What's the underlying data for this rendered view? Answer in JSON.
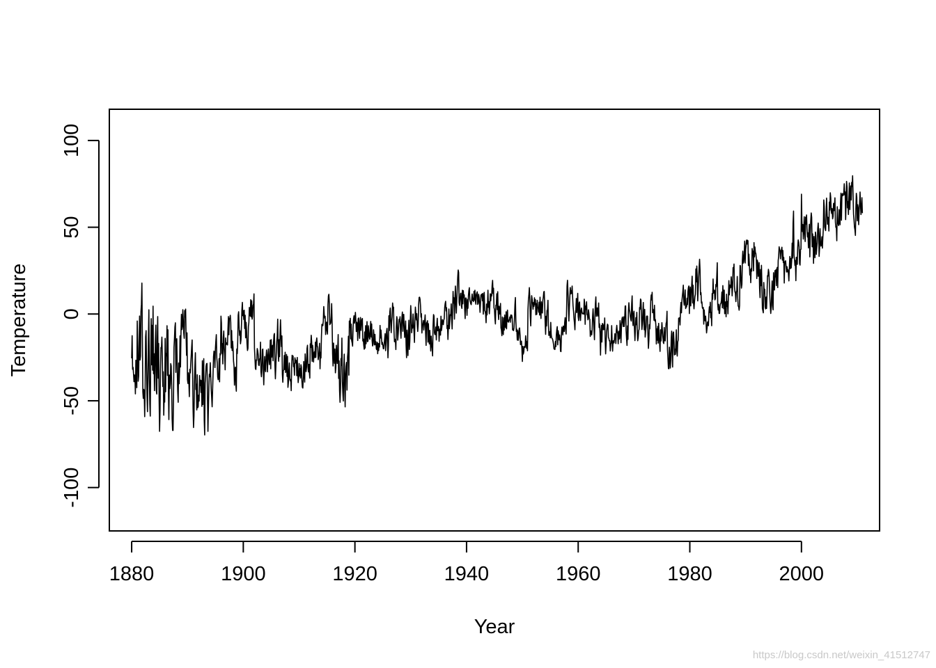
{
  "chart_data": {
    "type": "line",
    "title": "",
    "xlabel": "Year",
    "ylabel": "Temperature",
    "xlim": [
      1876,
      2014
    ],
    "ylim": [
      -125,
      118
    ],
    "x_ticks": [
      1880,
      1900,
      1920,
      1940,
      1960,
      1980,
      2000
    ],
    "x_tick_labels": [
      "1880",
      "1900",
      "1920",
      "1940",
      "1960",
      "1980",
      "2000"
    ],
    "y_ticks": [
      -100,
      -50,
      0,
      50,
      100
    ],
    "y_tick_labels": [
      "-100",
      "-50",
      "0",
      "50",
      "100"
    ],
    "grid": false,
    "legend": "none",
    "line_color": "#000000",
    "sampling": "monthly values, 1880-01 to 2010-12, anchored by yearly mean and monthly spread",
    "series": [
      {
        "start": 1880,
        "end": 2010,
        "years": [
          1880,
          1881,
          1882,
          1883,
          1884,
          1885,
          1886,
          1887,
          1888,
          1889,
          1890,
          1891,
          1892,
          1893,
          1894,
          1895,
          1896,
          1897,
          1898,
          1899,
          1900,
          1901,
          1902,
          1903,
          1904,
          1905,
          1906,
          1907,
          1908,
          1909,
          1910,
          1911,
          1912,
          1913,
          1914,
          1915,
          1916,
          1917,
          1918,
          1919,
          1920,
          1921,
          1922,
          1923,
          1924,
          1925,
          1926,
          1927,
          1928,
          1929,
          1930,
          1931,
          1932,
          1933,
          1934,
          1935,
          1936,
          1937,
          1938,
          1939,
          1940,
          1941,
          1942,
          1943,
          1944,
          1945,
          1946,
          1947,
          1948,
          1949,
          1950,
          1951,
          1952,
          1953,
          1954,
          1955,
          1956,
          1957,
          1958,
          1959,
          1960,
          1961,
          1962,
          1963,
          1964,
          1965,
          1966,
          1967,
          1968,
          1969,
          1970,
          1971,
          1972,
          1973,
          1974,
          1975,
          1976,
          1977,
          1978,
          1979,
          1980,
          1981,
          1982,
          1983,
          1984,
          1985,
          1986,
          1987,
          1988,
          1989,
          1990,
          1991,
          1992,
          1993,
          1994,
          1995,
          1996,
          1997,
          1998,
          1999,
          2000,
          2001,
          2002,
          2003,
          2004,
          2005,
          2006,
          2007,
          2008,
          2009,
          2010
        ],
        "yearly_mean": [
          -28,
          -20,
          -25,
          -18,
          -38,
          -42,
          -30,
          -35,
          -25,
          -12,
          -40,
          -45,
          -38,
          -50,
          -35,
          -30,
          -15,
          -10,
          -25,
          -12,
          -5,
          0,
          -18,
          -25,
          -30,
          -20,
          -15,
          -28,
          -35,
          -30,
          -32,
          -28,
          -20,
          -25,
          -10,
          -5,
          -20,
          -25,
          -30,
          -10,
          -8,
          -12,
          -15,
          -10,
          -12,
          -20,
          -5,
          -10,
          -8,
          -15,
          -5,
          -3,
          -8,
          -12,
          -10,
          -8,
          -5,
          5,
          10,
          8,
          10,
          10,
          8,
          5,
          6,
          5,
          -5,
          -5,
          -2,
          -8,
          -15,
          5,
          8,
          5,
          -5,
          -10,
          -15,
          0,
          5,
          2,
          0,
          0,
          -5,
          -3,
          -15,
          -20,
          -15,
          -10,
          -5,
          -2,
          -5,
          -2,
          -10,
          0,
          -10,
          -5,
          -20,
          -15,
          5,
          0,
          10,
          20,
          10,
          5,
          20,
          10,
          5,
          20,
          15,
          30,
          30,
          35,
          20,
          15,
          10,
          25,
          25,
          35,
          40,
          30,
          55,
          40,
          40,
          40,
          60,
          60,
          55,
          60,
          65,
          65,
          60,
          65,
          75
        ],
        "yearly_spread": [
          20,
          30,
          30,
          35,
          30,
          25,
          28,
          25,
          22,
          18,
          18,
          20,
          22,
          25,
          18,
          15,
          15,
          15,
          18,
          15,
          12,
          12,
          12,
          15,
          15,
          15,
          15,
          12,
          12,
          12,
          12,
          12,
          12,
          12,
          15,
          15,
          18,
          22,
          20,
          10,
          10,
          10,
          10,
          10,
          10,
          10,
          12,
          10,
          10,
          12,
          10,
          12,
          10,
          10,
          10,
          10,
          10,
          12,
          12,
          10,
          10,
          10,
          10,
          10,
          10,
          10,
          10,
          10,
          10,
          10,
          10,
          10,
          10,
          10,
          12,
          10,
          10,
          10,
          12,
          10,
          10,
          10,
          10,
          10,
          12,
          10,
          10,
          10,
          10,
          10,
          10,
          10,
          10,
          10,
          10,
          10,
          12,
          10,
          10,
          12,
          12,
          15,
          15,
          12,
          12,
          12,
          12,
          12,
          12,
          12,
          12,
          12,
          15,
          12,
          12,
          12,
          12,
          12,
          18,
          12,
          12,
          15,
          15,
          12,
          12,
          12,
          15,
          15,
          15,
          15,
          12
        ]
      }
    ]
  },
  "watermark": "https://blog.csdn.net/weixin_41512747"
}
